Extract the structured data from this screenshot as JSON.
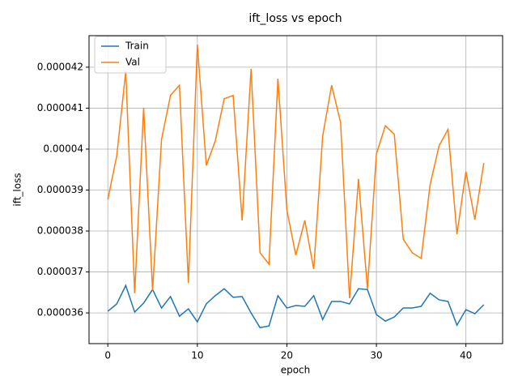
{
  "chart_data": {
    "type": "line",
    "title": "ift_loss vs epoch",
    "x_label": "epoch",
    "y_label": "ift_loss",
    "x": [
      0,
      1,
      2,
      3,
      4,
      5,
      6,
      7,
      8,
      9,
      10,
      11,
      12,
      13,
      14,
      15,
      16,
      17,
      18,
      19,
      20,
      21,
      22,
      23,
      24,
      25,
      26,
      27,
      28,
      29,
      30,
      31,
      32,
      33,
      34,
      35,
      36,
      37,
      38,
      39,
      40,
      41,
      42
    ],
    "series": [
      {
        "name": "Train",
        "color": "#1f77b4",
        "values": [
          3.604e-05,
          3.622e-05,
          3.667e-05,
          3.602e-05,
          3.624e-05,
          3.657e-05,
          3.612e-05,
          3.64e-05,
          3.592e-05,
          3.61e-05,
          3.578e-05,
          3.622e-05,
          3.642e-05,
          3.659e-05,
          3.638e-05,
          3.64e-05,
          3.6e-05,
          3.564e-05,
          3.568e-05,
          3.642e-05,
          3.612e-05,
          3.618e-05,
          3.616e-05,
          3.642e-05,
          3.584e-05,
          3.628e-05,
          3.628e-05,
          3.622e-05,
          3.659e-05,
          3.657e-05,
          3.596e-05,
          3.58e-05,
          3.59e-05,
          3.612e-05,
          3.612e-05,
          3.616e-05,
          3.648e-05,
          3.632e-05,
          3.628e-05,
          3.57e-05,
          3.608e-05,
          3.598e-05,
          3.62e-05
        ]
      },
      {
        "name": "Val",
        "color": "#ff7f0e",
        "values": [
          3.877e-05,
          3.984e-05,
          4.19e-05,
          3.648e-05,
          4.101e-05,
          3.655e-05,
          4.024e-05,
          4.131e-05,
          4.156e-05,
          3.673e-05,
          4.255e-05,
          3.96e-05,
          4.02e-05,
          4.123e-05,
          4.131e-05,
          3.826e-05,
          4.196e-05,
          3.747e-05,
          3.719e-05,
          4.172e-05,
          3.851e-05,
          3.741e-05,
          3.826e-05,
          3.707e-05,
          4.032e-05,
          4.156e-05,
          4.065e-05,
          3.636e-05,
          3.927e-05,
          3.659e-05,
          3.988e-05,
          4.057e-05,
          4.036e-05,
          3.78e-05,
          3.747e-05,
          3.733e-05,
          3.913e-05,
          4.008e-05,
          4.048e-05,
          3.792e-05,
          3.945e-05,
          3.828e-05,
          3.966e-05
        ]
      }
    ],
    "xlim": [
      -2.1,
      44.1
    ],
    "xticks": [
      0,
      10,
      20,
      30,
      40
    ],
    "ylim": [
      3.525e-05,
      4.277e-05
    ],
    "yticks": [
      3.6e-05,
      3.7e-05,
      3.8e-05,
      3.9e-05,
      4e-05,
      4.1e-05,
      4.2e-05
    ],
    "grid": true,
    "legend": "upper left"
  }
}
